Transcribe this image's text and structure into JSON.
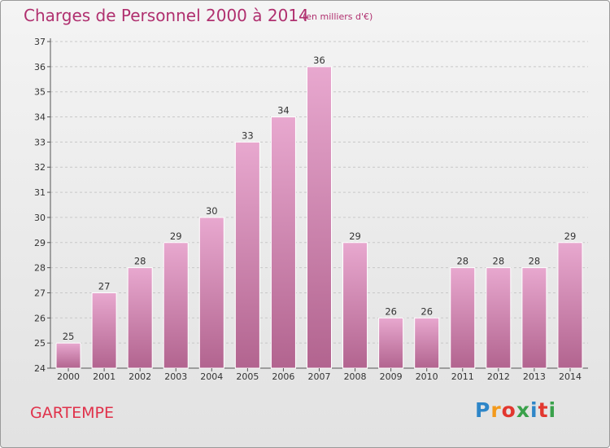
{
  "title": "Charges de Personnel 2000 à 2014",
  "unit_note": "(en milliers d'€)",
  "commune": "GARTEMPE",
  "logo": {
    "letters": [
      "P",
      "r",
      "o",
      "x",
      "i",
      "t",
      "i"
    ],
    "colors": [
      "#2e86c8",
      "#f39a1c",
      "#e2372f",
      "#3aa14b",
      "#2e86c8",
      "#e2372f",
      "#3aa14b"
    ]
  },
  "colors": {
    "bar_top": "#e8a8cf",
    "bar_bottom": "#b2648f",
    "grid": "#c8c8c8",
    "axis": "#555555"
  },
  "chart_data": {
    "type": "bar",
    "categories": [
      "2000",
      "2001",
      "2002",
      "2003",
      "2004",
      "2005",
      "2006",
      "2007",
      "2008",
      "2009",
      "2010",
      "2011",
      "2012",
      "2013",
      "2014"
    ],
    "values": [
      25,
      27,
      28,
      29,
      30,
      33,
      34,
      36,
      29,
      26,
      26,
      28,
      28,
      28,
      29
    ],
    "ylim": [
      24,
      37
    ],
    "yticks": [
      "24",
      "25",
      "26",
      "27",
      "28",
      "29",
      "30",
      "31",
      "32",
      "33",
      "34",
      "35",
      "36",
      "37"
    ],
    "grid": true,
    "title": "Charges de Personnel 2000 à 2014",
    "xlabel": "",
    "ylabel": ""
  }
}
